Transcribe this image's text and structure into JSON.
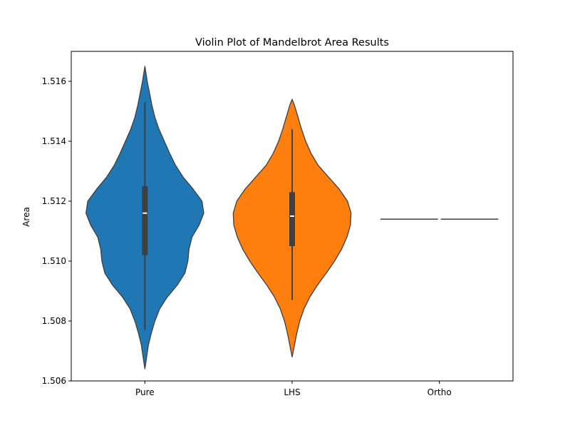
{
  "chart_data": {
    "type": "violin",
    "title": "Violin Plot of Mandelbrot Area Results",
    "xlabel": "",
    "ylabel": "Area",
    "ylim": [
      1.506,
      1.517
    ],
    "yticks": [
      1.506,
      1.508,
      1.51,
      1.512,
      1.514,
      1.516
    ],
    "ytick_labels": [
      "1.506",
      "1.508",
      "1.510",
      "1.512",
      "1.514",
      "1.516"
    ],
    "categories": [
      "Pure",
      "LHS",
      "Ortho"
    ],
    "grid": false,
    "series": [
      {
        "category": "Pure",
        "color": "#1f77b4",
        "kde_min": 1.5064,
        "kde_max": 1.5165,
        "whisker_low": 1.5077,
        "q1": 1.5102,
        "median": 1.5116,
        "q3": 1.5125,
        "whisker_high": 1.5153,
        "density_profile": [
          [
            1.5064,
            0.0
          ],
          [
            1.5068,
            0.03
          ],
          [
            1.5072,
            0.06
          ],
          [
            1.5076,
            0.11
          ],
          [
            1.508,
            0.17
          ],
          [
            1.5084,
            0.25
          ],
          [
            1.5088,
            0.38
          ],
          [
            1.5092,
            0.55
          ],
          [
            1.5096,
            0.68
          ],
          [
            1.51,
            0.73
          ],
          [
            1.5104,
            0.75
          ],
          [
            1.5108,
            0.8
          ],
          [
            1.5112,
            0.92
          ],
          [
            1.5116,
            1.0
          ],
          [
            1.512,
            0.97
          ],
          [
            1.5124,
            0.82
          ],
          [
            1.5128,
            0.65
          ],
          [
            1.5132,
            0.52
          ],
          [
            1.5136,
            0.42
          ],
          [
            1.514,
            0.33
          ],
          [
            1.5144,
            0.24
          ],
          [
            1.5148,
            0.17
          ],
          [
            1.5152,
            0.12
          ],
          [
            1.5156,
            0.08
          ],
          [
            1.516,
            0.04
          ],
          [
            1.5165,
            0.0
          ]
        ]
      },
      {
        "category": "LHS",
        "color": "#ff7f0e",
        "kde_min": 1.5068,
        "kde_max": 1.5154,
        "whisker_low": 1.5087,
        "q1": 1.5105,
        "median": 1.5115,
        "q3": 1.5123,
        "whisker_high": 1.5144,
        "density_profile": [
          [
            1.5068,
            0.0
          ],
          [
            1.5072,
            0.04
          ],
          [
            1.5076,
            0.08
          ],
          [
            1.508,
            0.13
          ],
          [
            1.5084,
            0.2
          ],
          [
            1.5088,
            0.3
          ],
          [
            1.5092,
            0.43
          ],
          [
            1.5096,
            0.58
          ],
          [
            1.51,
            0.72
          ],
          [
            1.5104,
            0.84
          ],
          [
            1.5108,
            0.93
          ],
          [
            1.5112,
            0.99
          ],
          [
            1.5116,
            1.0
          ],
          [
            1.512,
            0.94
          ],
          [
            1.5124,
            0.8
          ],
          [
            1.5128,
            0.62
          ],
          [
            1.5132,
            0.44
          ],
          [
            1.5136,
            0.32
          ],
          [
            1.514,
            0.23
          ],
          [
            1.5144,
            0.16
          ],
          [
            1.5148,
            0.1
          ],
          [
            1.5152,
            0.04
          ],
          [
            1.5154,
            0.0
          ]
        ]
      },
      {
        "category": "Ortho",
        "color": "#2ca02c",
        "kde_min": 1.5114,
        "kde_max": 1.5114,
        "whisker_low": 1.5114,
        "q1": 1.5114,
        "median": 1.5114,
        "q3": 1.5114,
        "whisker_high": 1.5114,
        "density_profile": []
      }
    ]
  }
}
